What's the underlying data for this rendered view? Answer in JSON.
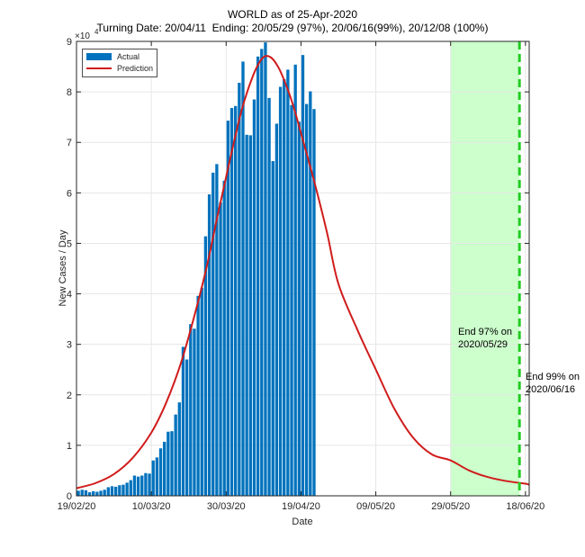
{
  "title": "WORLD as of 25-Apr-2020",
  "subtitle": "Turning Date: 20/04/11  Ending: 20/05/29 (97%), 20/06/16(99%), 20/12/08 (100%)",
  "chart_data": {
    "type": "bar",
    "xlabel": "Date",
    "ylabel": "New Cases / Day",
    "y_multiplier_label": "×10",
    "y_multiplier_exponent": "4",
    "ylim": [
      0,
      90000
    ],
    "xlim_days": [
      0,
      121
    ],
    "x_start_date": "2020-02-19",
    "y_ticks": [
      {
        "value": 0,
        "label": "0"
      },
      {
        "value": 10000,
        "label": "1"
      },
      {
        "value": 20000,
        "label": "2"
      },
      {
        "value": 30000,
        "label": "3"
      },
      {
        "value": 40000,
        "label": "4"
      },
      {
        "value": 50000,
        "label": "5"
      },
      {
        "value": 60000,
        "label": "6"
      },
      {
        "value": 70000,
        "label": "7"
      },
      {
        "value": 80000,
        "label": "8"
      },
      {
        "value": 90000,
        "label": "9"
      }
    ],
    "x_ticks": [
      {
        "day": 0,
        "label": "19/02/20"
      },
      {
        "day": 20,
        "label": "10/03/20"
      },
      {
        "day": 40,
        "label": "30/03/20"
      },
      {
        "day": 60,
        "label": "19/04/20"
      },
      {
        "day": 80,
        "label": "09/05/20"
      },
      {
        "day": 100,
        "label": "29/05/20"
      },
      {
        "day": 120,
        "label": "18/06/20"
      }
    ],
    "grid": true,
    "legend_position": "top-left",
    "series": [
      {
        "name": "Actual",
        "type": "bar",
        "color": "#0072BD",
        "x_start_day": 0,
        "values": [
          1000,
          1200,
          1100,
          700,
          900,
          800,
          1000,
          1200,
          1700,
          1900,
          1800,
          2100,
          2200,
          2600,
          3100,
          4000,
          3800,
          4000,
          4500,
          4400,
          7000,
          7600,
          9400,
          10700,
          12700,
          12800,
          16100,
          18500,
          29500,
          27000,
          34000,
          33100,
          39600,
          41200,
          51400,
          59700,
          64000,
          65700,
          58100,
          62400,
          74300,
          76800,
          77200,
          81800,
          86000,
          71500,
          71400,
          78500,
          87000,
          88500,
          89800,
          78800,
          66300,
          73700,
          81000,
          82500,
          84400,
          77400,
          85400,
          74100,
          87300,
          77600,
          80100,
          76600
        ]
      },
      {
        "name": "Prediction",
        "type": "line",
        "color": "#D01C1C",
        "x_day": [
          0,
          5,
          10,
          15,
          20,
          24,
          28,
          32,
          35,
          38,
          41,
          44,
          46,
          48,
          50,
          52,
          54,
          56,
          58,
          60,
          62,
          64,
          67,
          70,
          75,
          80,
          85,
          90,
          95,
          100,
          105,
          110,
          115,
          120,
          121
        ],
        "y": [
          1500,
          2500,
          4300,
          7500,
          12500,
          18500,
          26500,
          37000,
          46000,
          56500,
          66500,
          76000,
          80800,
          84600,
          86900,
          86800,
          84800,
          81400,
          77100,
          71800,
          66500,
          61000,
          52000,
          42000,
          33000,
          25000,
          17200,
          11500,
          8200,
          7000,
          5000,
          3700,
          2900,
          2400,
          2200
        ]
      }
    ],
    "shaded_region": {
      "from_day": 100,
      "to_day": 118.4,
      "color": "#CCFFCC"
    },
    "vline": {
      "day": 118.4,
      "color": "#22CC22",
      "style": "dashed"
    },
    "annotations": [
      {
        "lines": [
          "End 97% on",
          "2020/05/29"
        ]
      },
      {
        "lines": [
          "End 99% on",
          "2020/06/16"
        ]
      }
    ]
  }
}
